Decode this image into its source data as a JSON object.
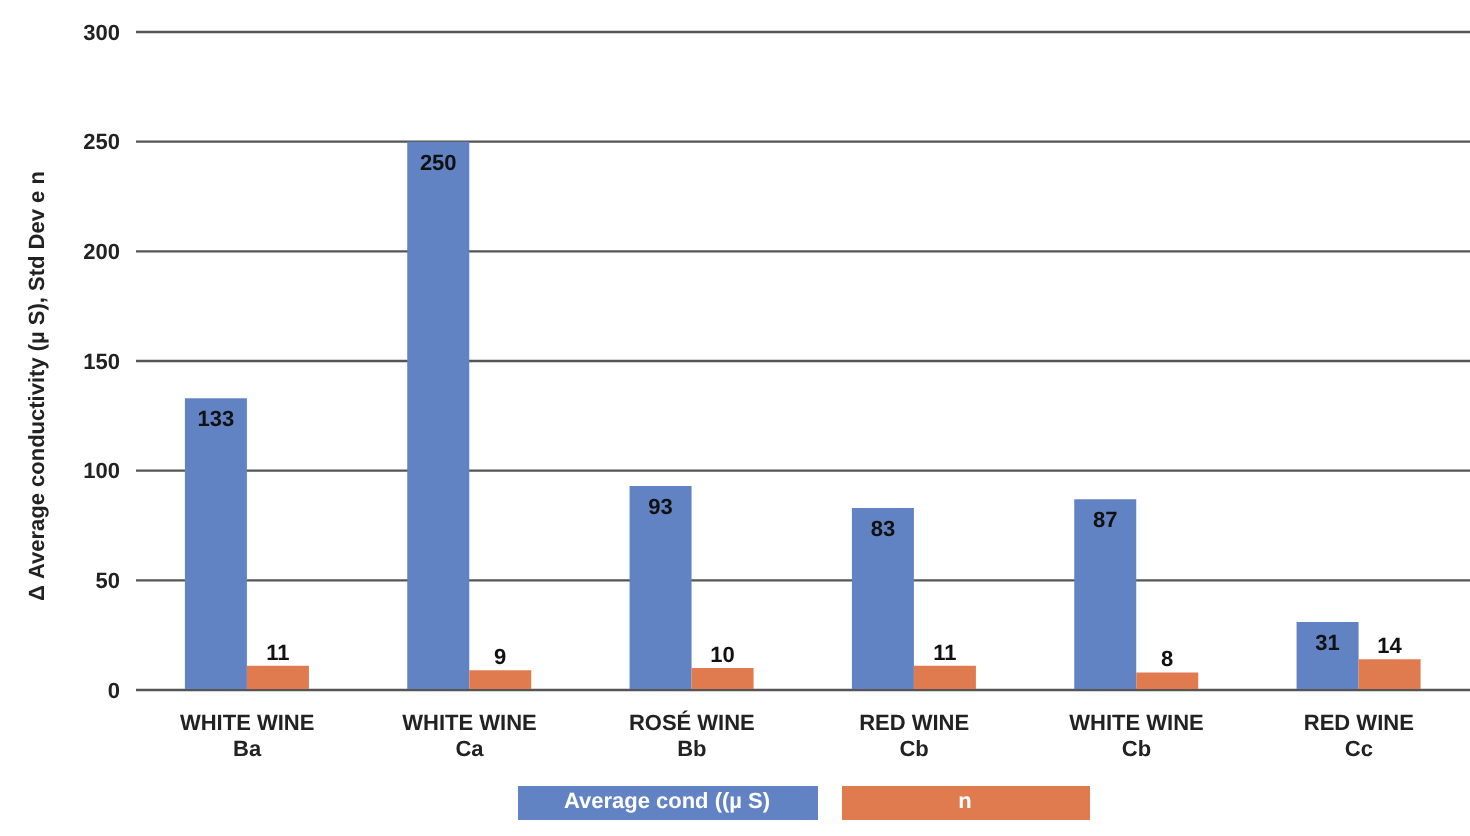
{
  "chart_data": {
    "type": "bar",
    "ylabel": "Δ Average conductivity (µ S), Std Dev e n",
    "categories": [
      "WHITE WINE\nBa",
      "WHITE WINE\nCa",
      "ROSÉ WINE\nBb",
      "RED WINE\nCb",
      "WHITE WINE\nCb",
      "RED WINE\nCc"
    ],
    "series": [
      {
        "name": "Average cond ((µ S)",
        "color": "#6283c3",
        "values": [
          133,
          250,
          93,
          83,
          87,
          31
        ]
      },
      {
        "name": "n",
        "color": "#e07b50",
        "values": [
          11,
          9,
          10,
          11,
          8,
          14
        ]
      }
    ],
    "ylim": [
      0,
      300
    ],
    "yticks": [
      0,
      50,
      100,
      150,
      200,
      250,
      300
    ],
    "grid": "y",
    "legend": "bottom",
    "data_labels": true
  }
}
